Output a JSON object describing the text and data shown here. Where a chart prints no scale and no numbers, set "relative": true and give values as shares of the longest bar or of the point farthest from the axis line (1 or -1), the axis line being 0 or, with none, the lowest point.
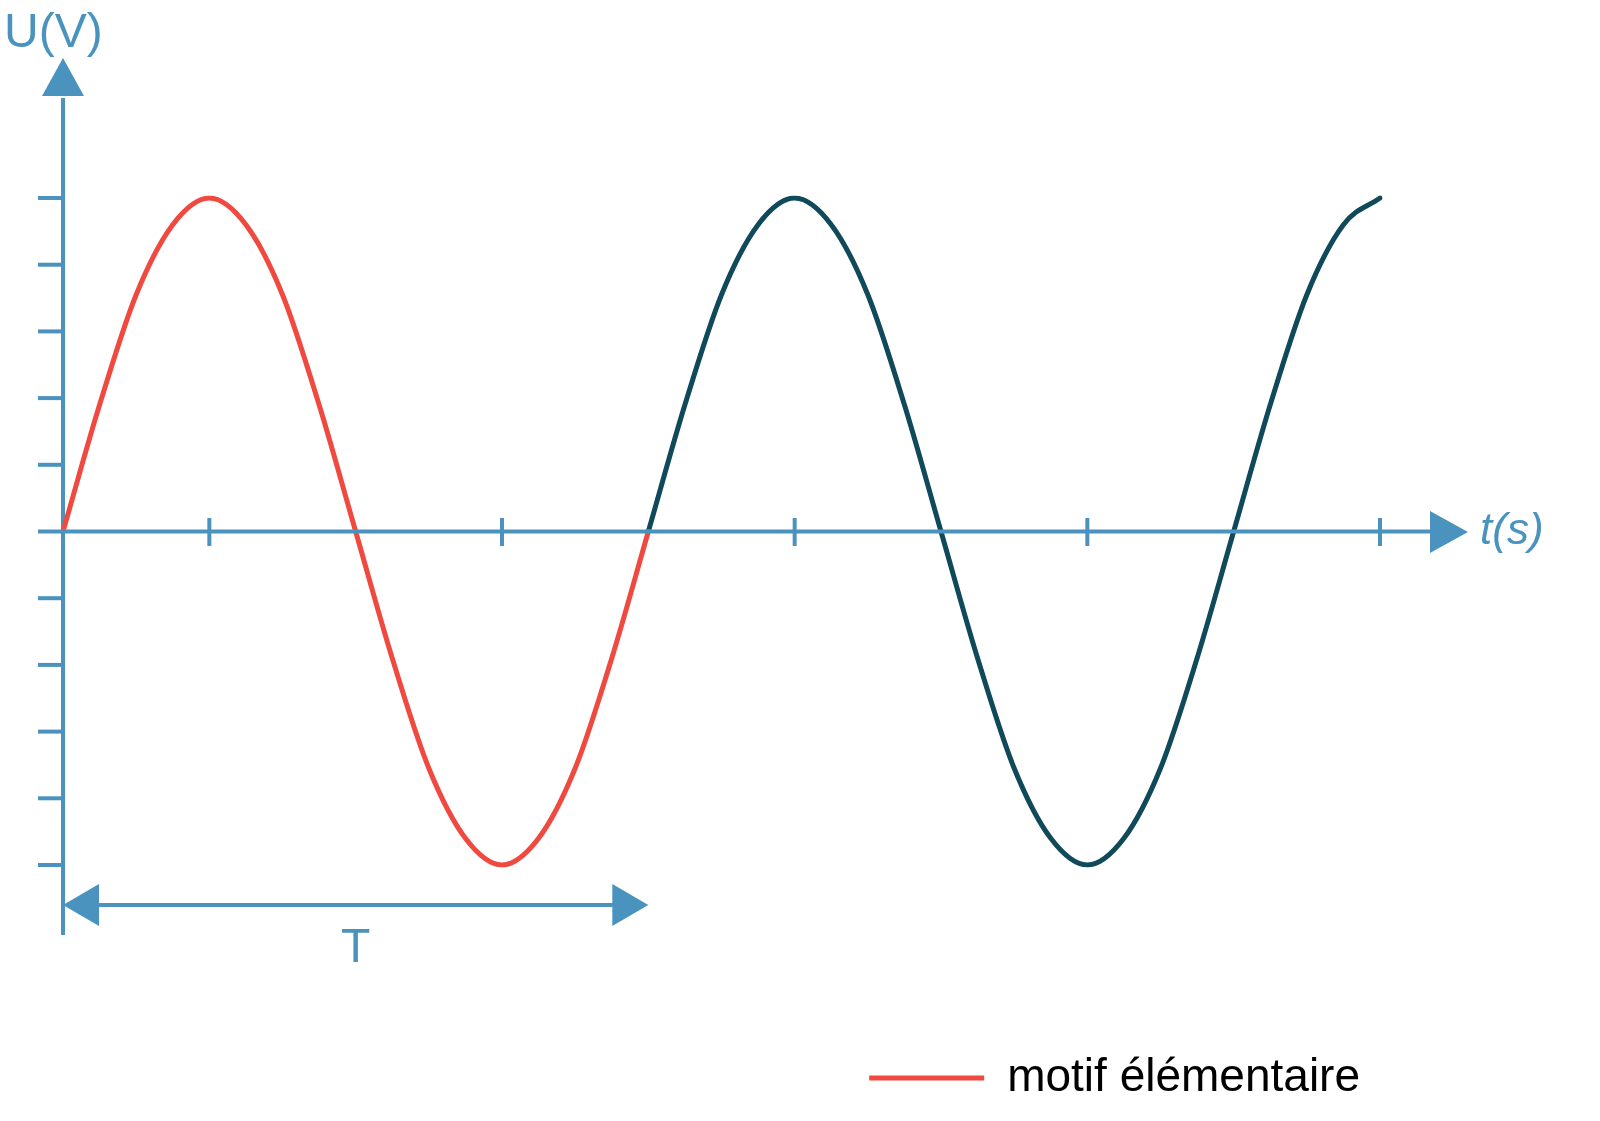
{
  "chart_data": {
    "type": "line",
    "xlabel": "t(s)",
    "ylabel": "U(V)",
    "annotations": [
      "T"
    ],
    "categories": [
      null,
      null,
      null,
      null,
      null,
      null,
      null,
      null,
      null,
      null,
      null,
      null,
      null,
      null,
      null,
      null,
      null,
      null,
      null,
      null,
      null,
      null,
      null,
      null,
      null,
      null,
      null,
      null,
      null,
      null,
      null,
      null,
      null,
      null,
      null,
      null,
      null
    ],
    "relative": true,
    "ref_lines": [
      {
        "axis": "y",
        "value": 0,
        "color": "#4a93bf"
      }
    ],
    "legend": "bottom right",
    "marker": "none",
    "series": [
      {
        "name": "motif élémentaire",
        "color": "#f04a40",
        "values": [
          0,
          0.38,
          0.71,
          0.92,
          1,
          0.92,
          0.71,
          0.38,
          0,
          -0.38,
          -0.71,
          -0.92,
          -1,
          -0.92,
          -0.71,
          -0.38,
          0,
          null,
          null,
          null,
          null,
          null,
          null,
          null,
          null,
          null,
          null,
          null,
          null,
          null,
          null,
          null,
          null,
          null,
          null,
          null,
          null
        ]
      },
      {
        "color": "#10495a",
        "values": [
          null,
          null,
          null,
          null,
          null,
          null,
          null,
          null,
          null,
          null,
          null,
          null,
          null,
          null,
          null,
          null,
          0,
          0.38,
          0.71,
          0.92,
          1,
          0.92,
          0.71,
          0.38,
          0,
          -0.38,
          -0.71,
          -0.92,
          -1,
          -0.92,
          -0.71,
          -0.38,
          0,
          0.38,
          0.71,
          0.92,
          1
        ]
      }
    ]
  }
}
